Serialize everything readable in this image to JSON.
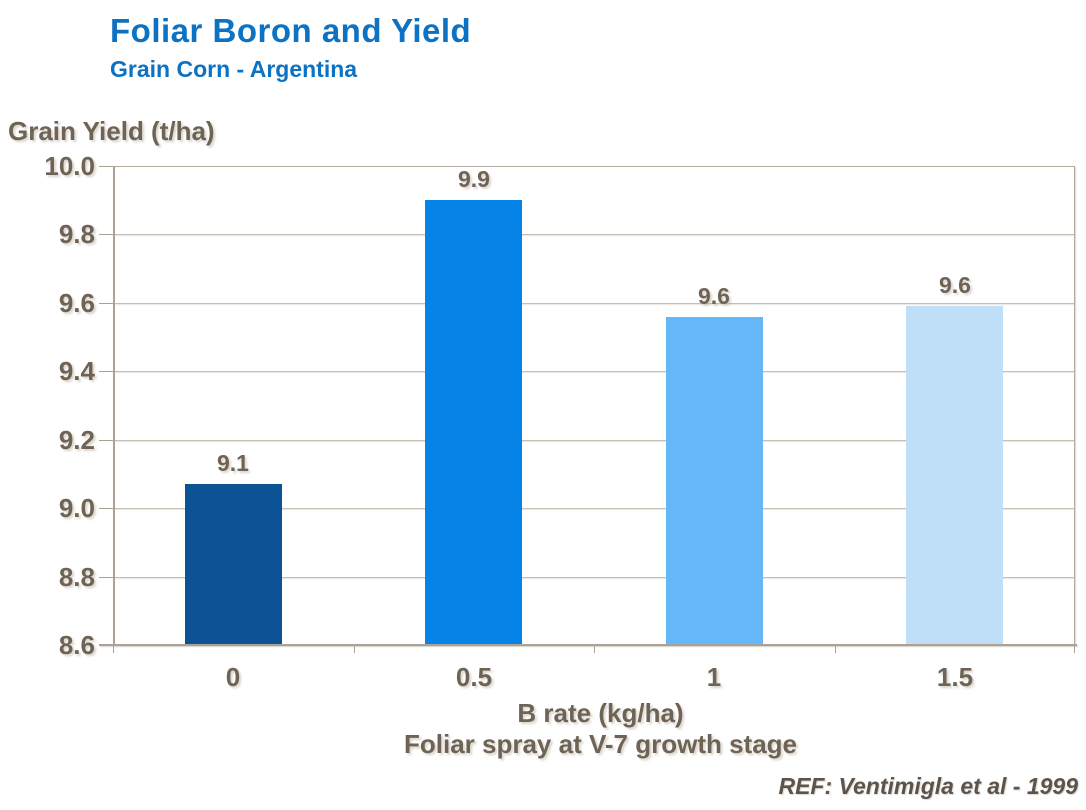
{
  "header": {
    "title": "Foliar Boron and Yield",
    "subtitle": "Grain Corn - Argentina"
  },
  "footer": {
    "reference": "REF: Ventimigla et al - 1999"
  },
  "chart_data": {
    "type": "bar",
    "title": "Foliar Boron and Yield",
    "subtitle": "Grain Corn - Argentina",
    "ylabel": "Grain Yield (t/ha)",
    "xlabel": "B rate (kg/ha)",
    "xlabel2": "Foliar spray at V-7 growth stage",
    "categories": [
      "0",
      "0.5",
      "1",
      "1.5"
    ],
    "values": [
      9.1,
      9.9,
      9.6,
      9.6
    ],
    "bar_labels": [
      "9.1",
      "9.9",
      "9.6",
      "9.6"
    ],
    "plotted_values": [
      9.07,
      9.9,
      9.56,
      9.59
    ],
    "ylim": [
      8.6,
      10.0
    ],
    "ytick_step": 0.2,
    "ytick_labels": [
      "10.0",
      "9.8",
      "9.6",
      "9.4",
      "9.2",
      "9.0",
      "8.8",
      "8.6"
    ],
    "grid": true,
    "legend": false,
    "bar_colors": [
      "#0b5394",
      "#0583e6",
      "#64b8f7",
      "#bfdff9"
    ],
    "colors": {
      "title_blue": "#0b72c4",
      "axis_text": "#6e6354",
      "footer_text": "#5c544a",
      "gridline": "#c6beb4",
      "axis_line": "#aba295"
    }
  }
}
